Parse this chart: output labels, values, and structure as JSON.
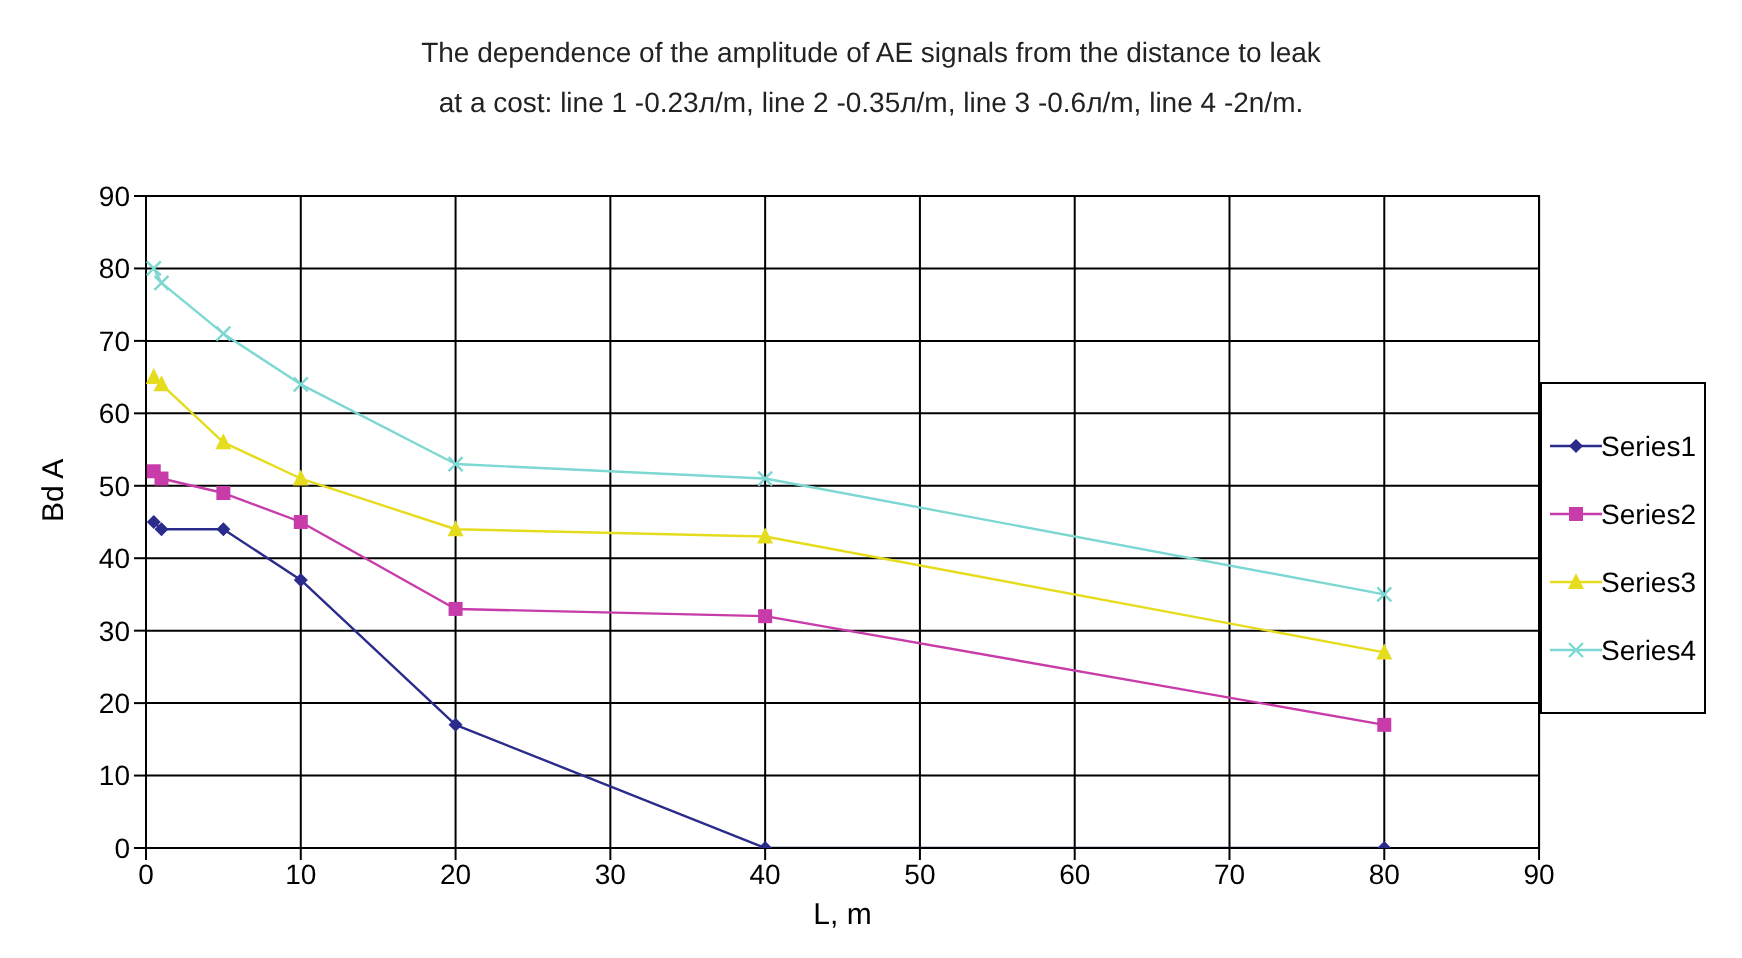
{
  "chart_data": {
    "type": "line",
    "title": "The dependence of the amplitude of AE signals from the distance to leak",
    "subtitle": "at a cost: line 1 -0.23л/m, line 2 -0.35л/m, line 3 -0.6л/m, line 4 -2n/m.",
    "xlabel": "L, m",
    "ylabel": "Bd  A",
    "x": [
      0.5,
      1,
      5,
      10,
      20,
      40,
      80
    ],
    "series": [
      {
        "name": "Series1",
        "color": "#2b2b8c",
        "marker": "diamond",
        "values": [
          45,
          44,
          44,
          37,
          17,
          0,
          0
        ]
      },
      {
        "name": "Series2",
        "color": "#c83caa",
        "marker": "square",
        "values": [
          52,
          51,
          49,
          45,
          33,
          32,
          17
        ]
      },
      {
        "name": "Series3",
        "color": "#e6dc1e",
        "marker": "triangle",
        "values": [
          65,
          64,
          56,
          51,
          44,
          43,
          27
        ]
      },
      {
        "name": "Series4",
        "color": "#7dd7d2",
        "marker": "cross",
        "values": [
          80,
          78,
          71,
          64,
          53,
          51,
          35
        ]
      }
    ],
    "xlim": [
      0,
      90
    ],
    "xticks": [
      0,
      10,
      20,
      30,
      40,
      50,
      60,
      70,
      80,
      90
    ],
    "ylim": [
      0,
      90
    ],
    "yticks": [
      0,
      10,
      20,
      30,
      40,
      50,
      60,
      70,
      80,
      90
    ],
    "grid": true,
    "legend": "right"
  }
}
